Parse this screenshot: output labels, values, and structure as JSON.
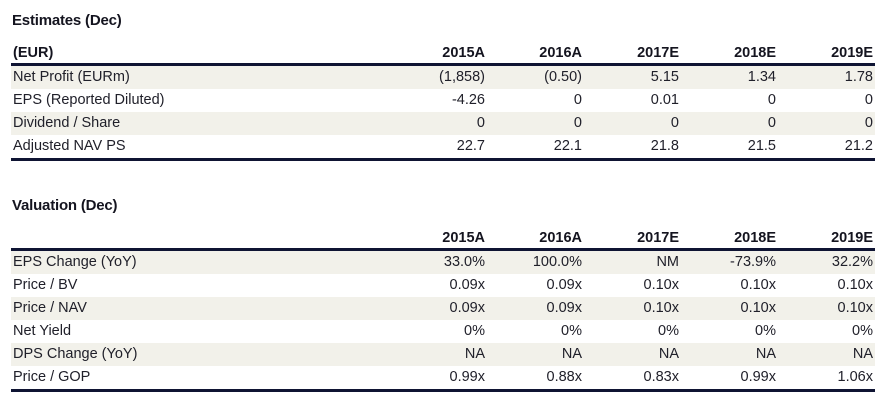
{
  "page": {
    "background_color": "#ffffff",
    "rule_color": "#0f1433",
    "shaded_row_color": "#f2f1ea",
    "text_color": "#20202a",
    "title_color": "#14141f"
  },
  "tables": [
    {
      "title": "Estimates (Dec)",
      "unit_label": "(EUR)",
      "columns": [
        "2015A",
        "2016A",
        "2017E",
        "2018E",
        "2019E"
      ],
      "rows": [
        {
          "label": "Net Profit (EURm)",
          "values": [
            "(1,858)",
            "(0.50)",
            "5.15",
            "1.34",
            "1.78"
          ]
        },
        {
          "label": "EPS (Reported Diluted)",
          "values": [
            "-4.26",
            "0",
            "0.01",
            "0",
            "0"
          ]
        },
        {
          "label": "Dividend / Share",
          "values": [
            "0",
            "0",
            "0",
            "0",
            "0"
          ]
        },
        {
          "label": "Adjusted NAV PS",
          "values": [
            "22.7",
            "22.1",
            "21.8",
            "21.5",
            "21.2"
          ]
        }
      ]
    },
    {
      "title": "Valuation (Dec)",
      "unit_label": "",
      "columns": [
        "2015A",
        "2016A",
        "2017E",
        "2018E",
        "2019E"
      ],
      "rows": [
        {
          "label": "EPS Change (YoY)",
          "values": [
            "33.0%",
            "100.0%",
            "NM",
            "-73.9%",
            "32.2%"
          ]
        },
        {
          "label": "Price / BV",
          "values": [
            "0.09x",
            "0.09x",
            "0.10x",
            "0.10x",
            "0.10x"
          ]
        },
        {
          "label": "Price / NAV",
          "values": [
            "0.09x",
            "0.09x",
            "0.10x",
            "0.10x",
            "0.10x"
          ]
        },
        {
          "label": "Net Yield",
          "values": [
            "0%",
            "0%",
            "0%",
            "0%",
            "0%"
          ]
        },
        {
          "label": "DPS Change (YoY)",
          "values": [
            "NA",
            "NA",
            "NA",
            "NA",
            "NA"
          ]
        },
        {
          "label": "Price / GOP",
          "values": [
            "0.99x",
            "0.88x",
            "0.83x",
            "0.99x",
            "1.06x"
          ]
        }
      ]
    }
  ]
}
